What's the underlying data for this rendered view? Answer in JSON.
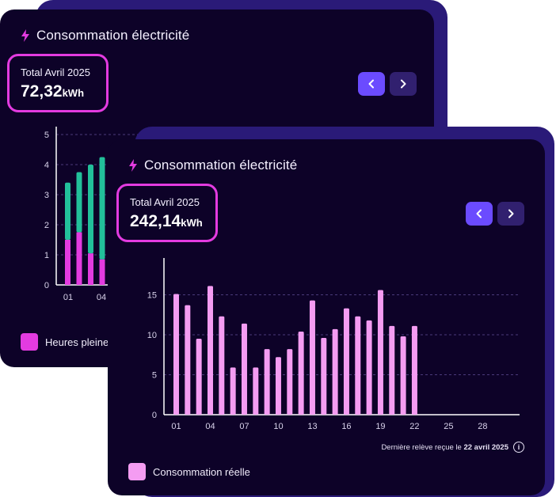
{
  "back_card": {
    "title": "Consommation électricité",
    "total_label": "Total Avril 2025",
    "total_value": "72,32",
    "total_unit": "kWh",
    "legend": {
      "label": "Heures pleine",
      "color": "#e33be0"
    },
    "chart_data": {
      "type": "bar",
      "stacked": true,
      "y_ticks": [
        "0",
        "1",
        "2",
        "3",
        "4",
        "5"
      ],
      "x_tick_labels": [
        "01",
        "04"
      ],
      "ylim": [
        0,
        5
      ],
      "series": [
        {
          "name": "Heures pleine",
          "color": "#e33be0",
          "values": [
            1.5,
            1.75,
            1.05,
            0.85
          ]
        },
        {
          "color": "#22c09a",
          "values": [
            1.9,
            2.0,
            2.95,
            3.4
          ]
        }
      ]
    }
  },
  "front_card": {
    "title": "Consommation électricité",
    "total_label": "Total Avril 2025",
    "total_value": "242,14",
    "total_unit": "kWh",
    "legend": {
      "label": "Consommation réelle",
      "color": "#f49cf2"
    },
    "footnote": {
      "prefix": "Dernière relève reçue le",
      "date": "22 avril 2025"
    },
    "chart_data": {
      "type": "bar",
      "y_ticks": [
        "0",
        "5",
        "10",
        "15"
      ],
      "x_tick_labels": [
        "01",
        "04",
        "07",
        "10",
        "13",
        "16",
        "19",
        "22",
        "25",
        "28"
      ],
      "ylim": [
        0,
        20
      ],
      "values": [
        15.1,
        13.7,
        9.5,
        16.1,
        12.3,
        5.9,
        11.4,
        5.9,
        8.2,
        7.2,
        8.2,
        10.4,
        14.3,
        9.6,
        10.7,
        13.3,
        12.3,
        11.8,
        15.6,
        11.1,
        9.8,
        11.1
      ],
      "color": "#f49cf2"
    }
  },
  "icons": {
    "title": "bolt-icon",
    "prev": "chevron-left-icon",
    "next": "chevron-right-icon",
    "info": "info-icon"
  }
}
